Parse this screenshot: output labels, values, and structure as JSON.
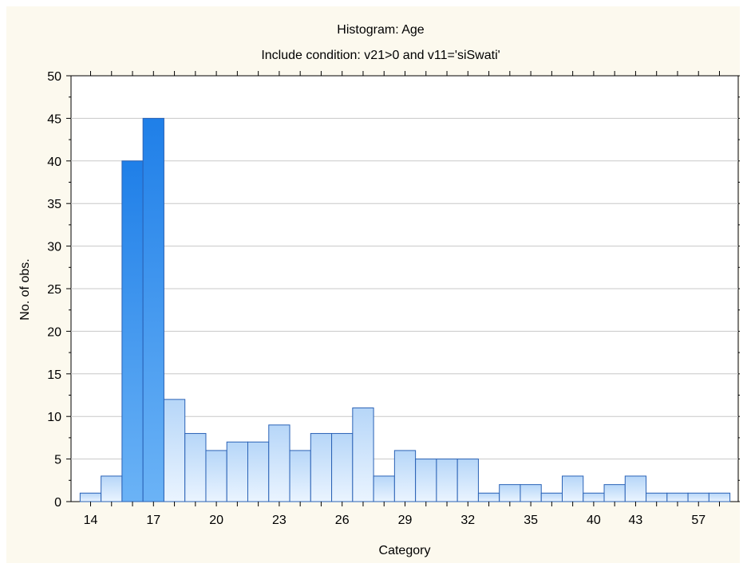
{
  "chart_data": {
    "type": "bar",
    "title": "Histogram: Age",
    "subtitle": "Include condition: v21>0  and v11='siSwati'",
    "xlabel": "Category",
    "ylabel": "No. of obs.",
    "ylim": [
      0,
      50
    ],
    "yticks": [
      0,
      5,
      10,
      15,
      20,
      25,
      30,
      35,
      40,
      45,
      50
    ],
    "categories": [
      "14",
      "15",
      "16",
      "17",
      "18",
      "19",
      "20",
      "21",
      "22",
      "23",
      "24",
      "25",
      "26",
      "27",
      "28",
      "29",
      "30",
      "31",
      "32",
      "33",
      "34",
      "35",
      "36",
      "38",
      "40",
      "41",
      "43",
      "44",
      "45",
      "57",
      "58"
    ],
    "x_tick_labels": [
      "14",
      "17",
      "20",
      "23",
      "26",
      "29",
      "32",
      "35",
      "40",
      "43",
      "57"
    ],
    "values": [
      1,
      3,
      40,
      45,
      12,
      8,
      6,
      7,
      7,
      9,
      6,
      8,
      8,
      11,
      3,
      6,
      5,
      5,
      5,
      1,
      2,
      2,
      1,
      3,
      1,
      2,
      3,
      1,
      1,
      1,
      1
    ],
    "highlighted_categories": [
      "16",
      "17"
    ],
    "grid": true,
    "colors": {
      "background": "#fcf9ee",
      "plot_background": "#ffffff",
      "bar_light": "#e6f1ff",
      "bar_mid": "#b6d6f8",
      "bar_highlight_top": "#2b86e9",
      "bar_highlight_bottom": "#58a7f4",
      "bar_stroke": "#2a62b6",
      "grid": "#c0c0c0"
    }
  }
}
